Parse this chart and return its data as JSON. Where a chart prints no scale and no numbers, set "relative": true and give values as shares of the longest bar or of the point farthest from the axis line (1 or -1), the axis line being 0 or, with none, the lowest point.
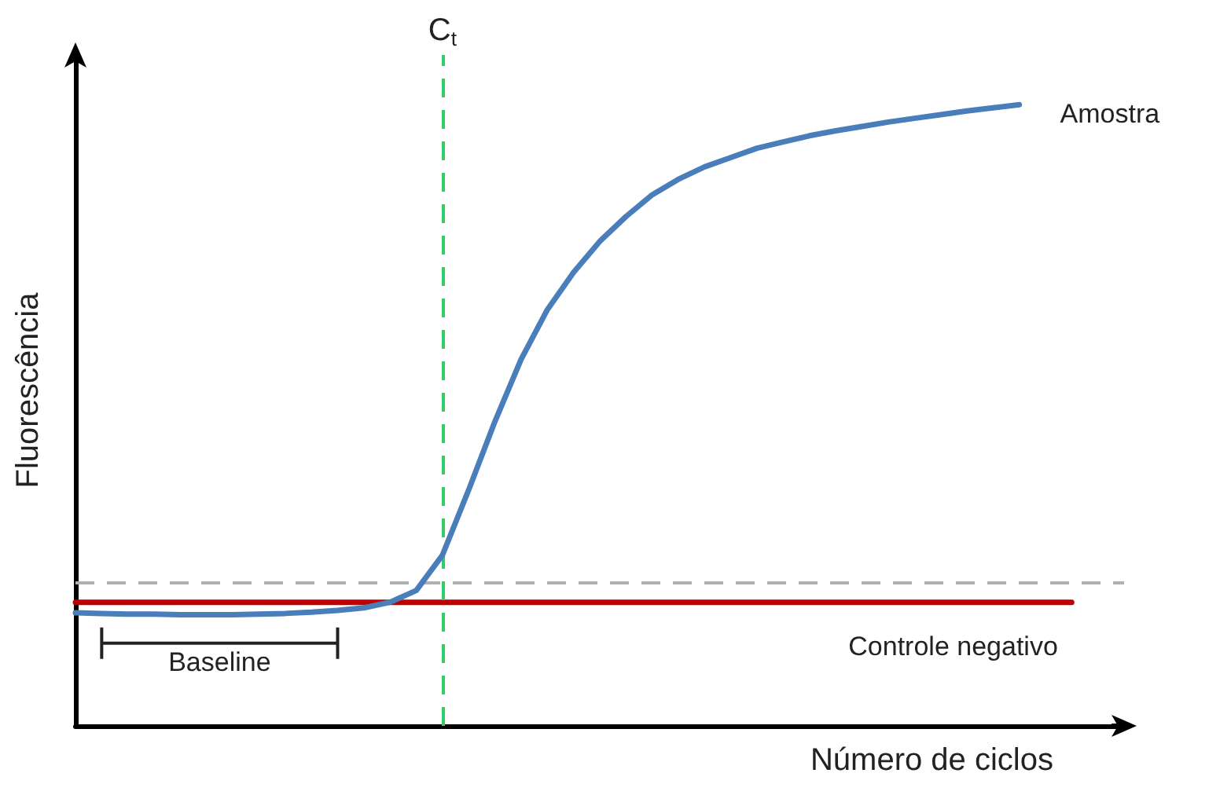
{
  "chart_data": {
    "type": "line",
    "xlabel": "Número de ciclos",
    "ylabel": "Fluorescência",
    "relative": true,
    "marker": "none",
    "annotations": [
      "C$_{t}$",
      "Baseline"
    ],
    "categories": [
      null,
      null,
      null,
      null,
      null,
      null,
      null,
      null,
      null,
      null,
      null,
      null,
      null,
      null,
      null,
      null,
      null,
      null,
      null,
      null,
      null,
      null,
      null,
      null,
      null,
      null,
      null,
      null,
      null,
      null,
      null,
      null,
      null,
      null,
      null,
      null,
      null,
      null,
      null,
      null,
      null
    ],
    "series": [
      {
        "name": "Amostra",
        "color": "#4a7ebb",
        "values": [
          0.182,
          0.181,
          0.18,
          0.18,
          0.179,
          0.179,
          0.179,
          0.18,
          0.181,
          0.183,
          0.186,
          0.19,
          0.199,
          0.218,
          0.275,
          0.38,
          0.49,
          0.59,
          0.67,
          0.73,
          0.78,
          0.82,
          0.855,
          0.88,
          0.9,
          0.915,
          0.93,
          0.94,
          0.95,
          0.958,
          0.965,
          0.972,
          0.978,
          0.984,
          0.99,
          0.995,
          1.0,
          null,
          null,
          null,
          null
        ]
      },
      {
        "name": "Controle negativo",
        "color": "#c00000",
        "values": [
          0.199,
          0.199,
          0.199,
          0.199,
          0.199,
          0.199,
          0.199,
          0.199,
          0.199,
          0.199,
          0.199,
          0.199,
          0.199,
          0.199,
          0.199,
          0.199,
          0.199,
          0.199,
          0.199,
          0.199,
          0.199,
          0.199,
          0.199,
          0.199,
          0.199,
          0.199,
          0.199,
          0.199,
          0.199,
          0.199,
          0.199,
          0.199,
          0.199,
          0.199,
          0.199,
          0.199,
          0.199,
          0.199,
          0.199,
          null,
          null
        ]
      }
    ],
    "ref_lines": [
      {
        "axis": "y",
        "value": 0.231,
        "label": null,
        "color": "#b0b0b0",
        "line_style": "dashed"
      }
    ]
  }
}
